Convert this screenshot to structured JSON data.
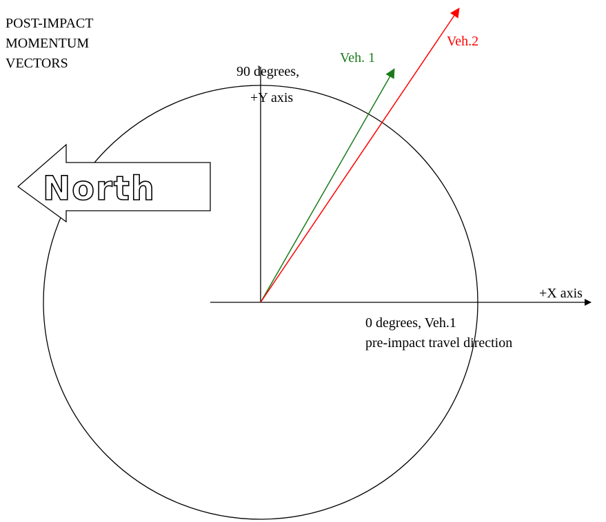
{
  "title_lines": [
    "POST-IMPACT",
    "MOMENTUM",
    "VECTORS"
  ],
  "y_axis_label": [
    "90 degrees,",
    "+Y axis"
  ],
  "x_axis_label": "+X axis",
  "zero_label": [
    "0 degrees, Veh.1",
    "pre-impact travel direction"
  ],
  "vehicles": [
    {
      "name": "Veh. 1",
      "color": "#1a7a1a"
    },
    {
      "name": "Veh.2",
      "color": "#ff0000"
    }
  ],
  "compass": "North"
}
